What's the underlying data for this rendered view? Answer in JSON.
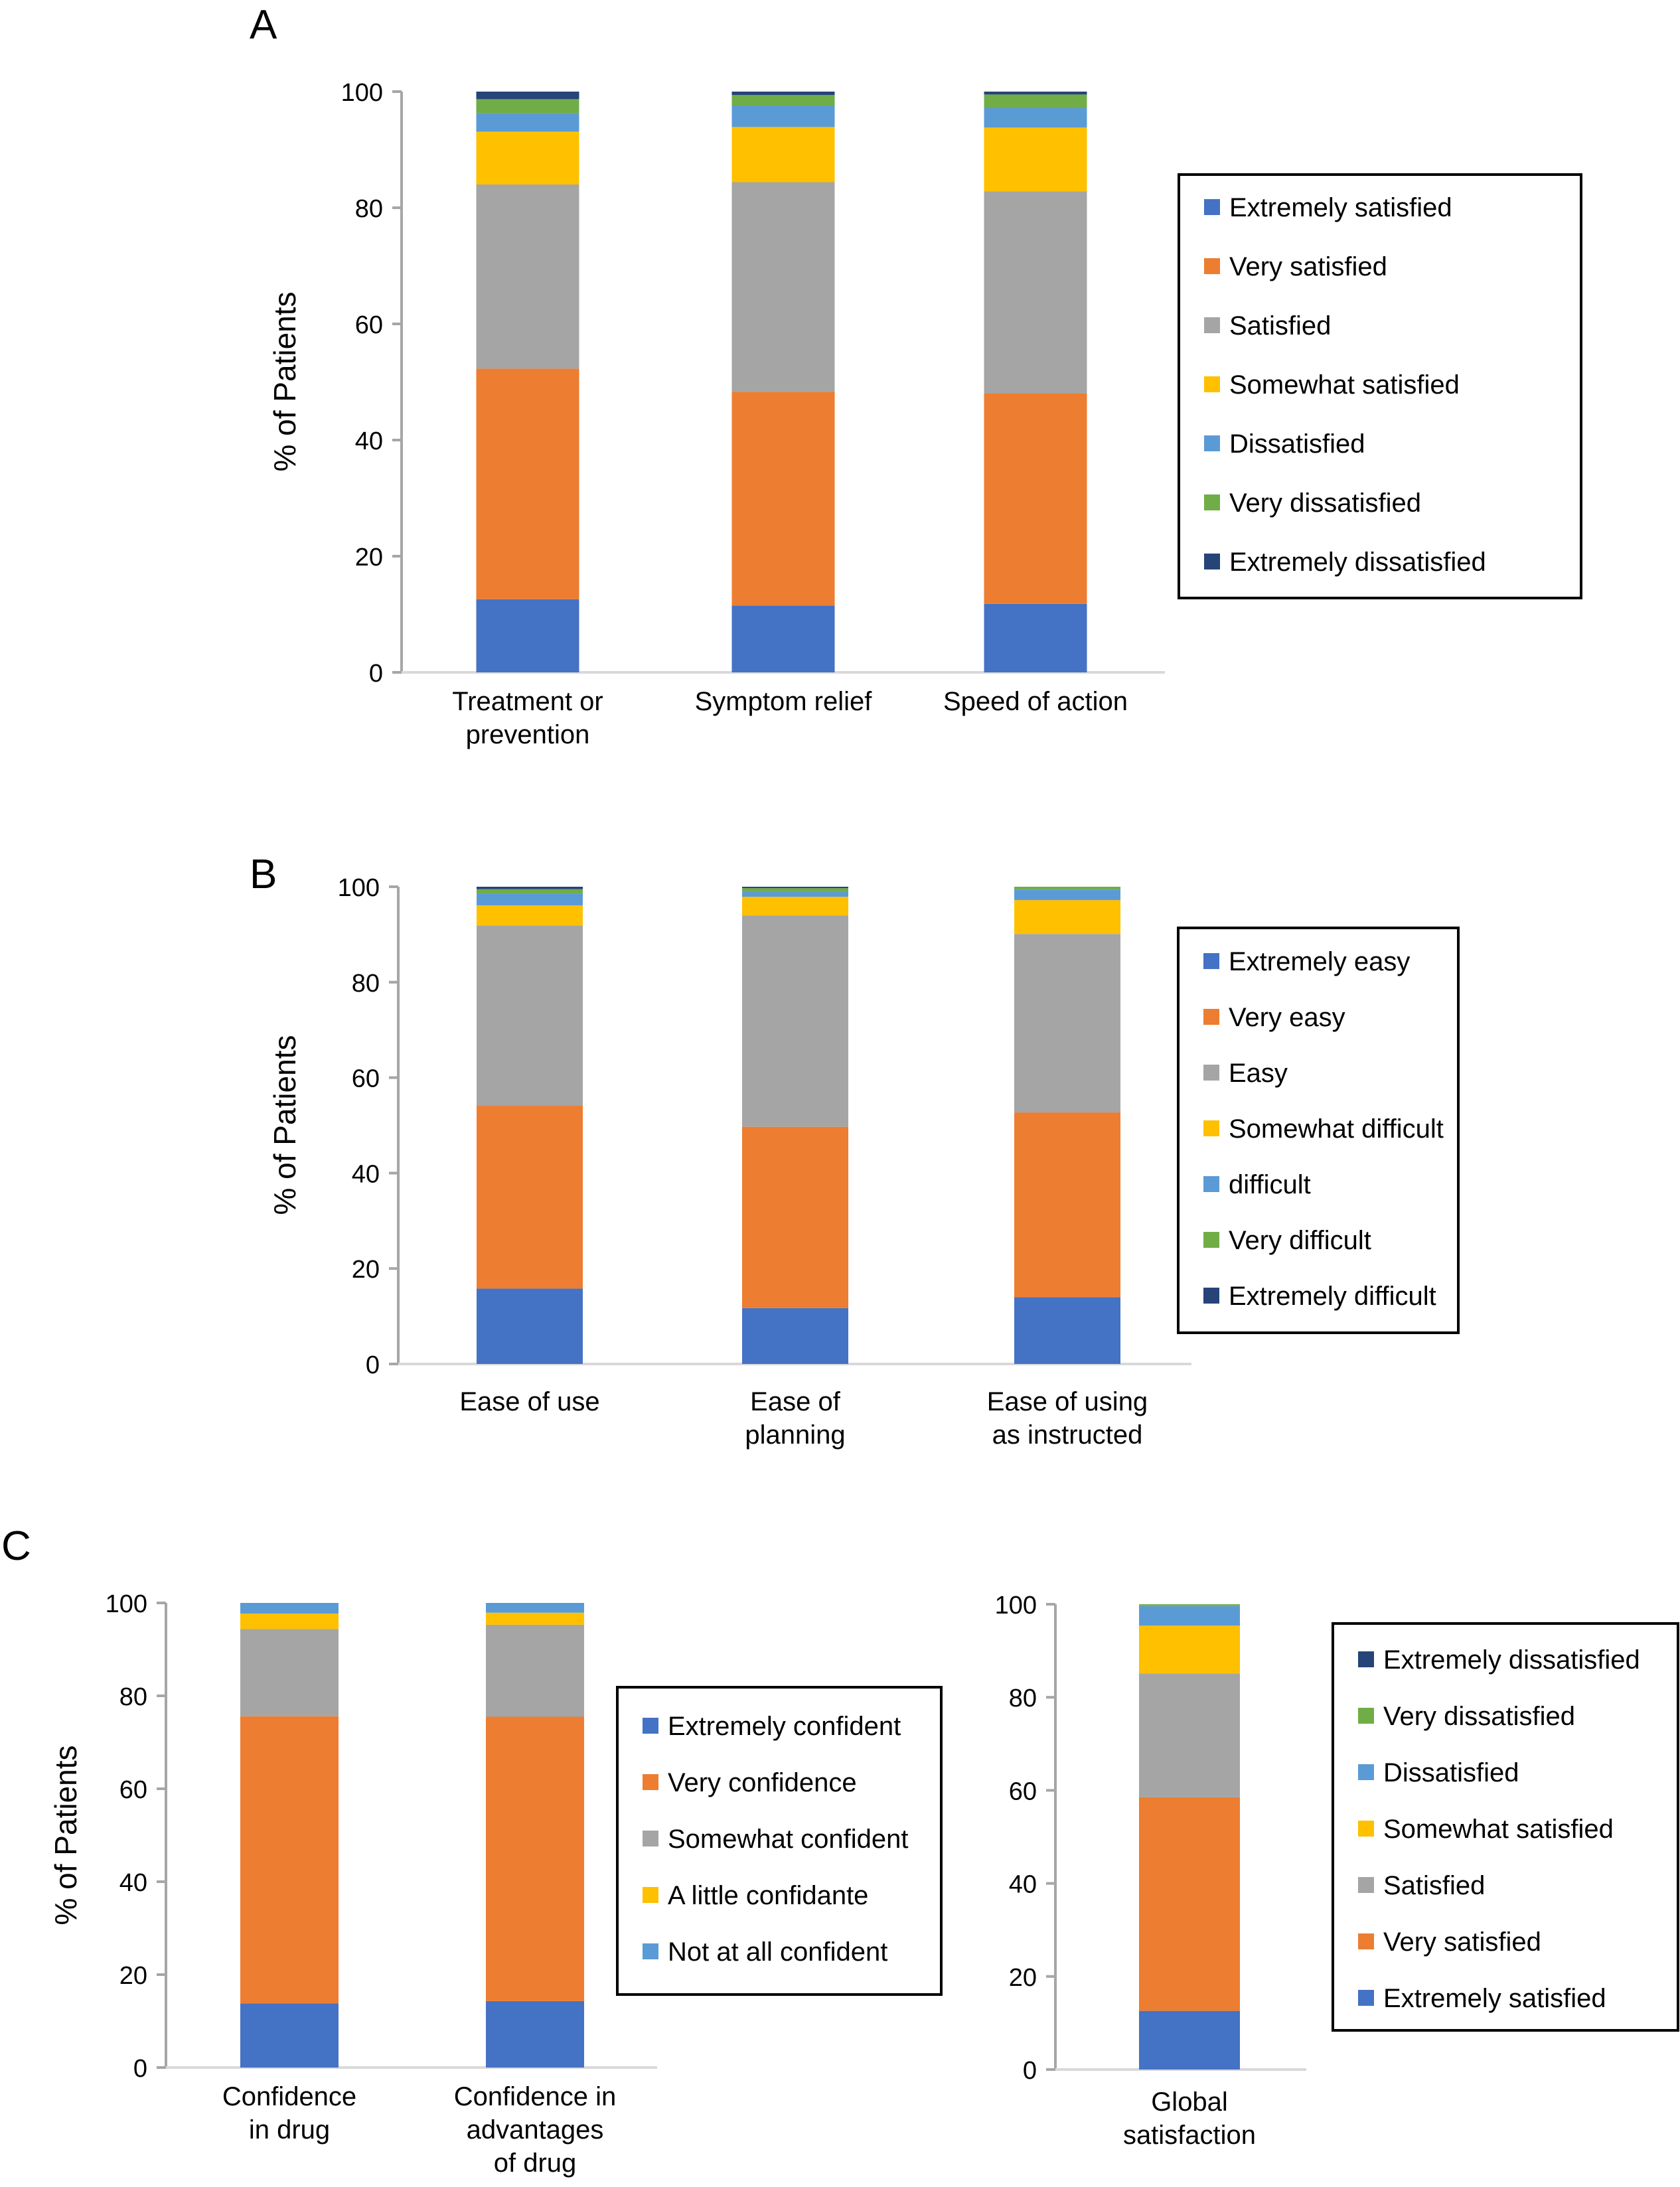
{
  "colors": {
    "dark_blue": "#4472C4",
    "orange": "#ED7D31",
    "gray": "#A5A5A5",
    "yellow": "#FFC000",
    "light_blue": "#5B9BD5",
    "green": "#70AD47",
    "navy": "#264478"
  },
  "chart_data": [
    {
      "panel": "A",
      "type": "bar",
      "stacked": true,
      "ylabel": "% of Patients",
      "ylim": [
        0,
        100
      ],
      "yticks": [
        "0",
        "20",
        "40",
        "60",
        "80",
        "100"
      ],
      "legend_position": "right",
      "categories": [
        [
          "Treatment or",
          "prevention"
        ],
        [
          "Symptom relief"
        ],
        [
          "Speed of action"
        ]
      ],
      "series": [
        {
          "name": "Extremely satisfied",
          "color": "#4472C4",
          "values": [
            12.6,
            11.5,
            11.8
          ]
        },
        {
          "name": "Very satisfied",
          "color": "#ED7D31",
          "values": [
            39.7,
            36.8,
            36.2
          ]
        },
        {
          "name": "Satisfied",
          "color": "#A5A5A5",
          "values": [
            31.7,
            36.1,
            34.8
          ]
        },
        {
          "name": "Somewhat satisfied",
          "color": "#FFC000",
          "values": [
            9.1,
            9.5,
            11.0
          ]
        },
        {
          "name": "Dissatisfied",
          "color": "#5B9BD5",
          "values": [
            3.2,
            3.7,
            3.4
          ]
        },
        {
          "name": "Very dissatisfied",
          "color": "#70AD47",
          "values": [
            2.4,
            1.8,
            2.3
          ]
        },
        {
          "name": "Extremely dissatisfied",
          "color": "#264478",
          "values": [
            1.3,
            0.6,
            0.5
          ]
        }
      ],
      "legend_order": [
        0,
        1,
        2,
        3,
        4,
        5,
        6
      ]
    },
    {
      "panel": "B",
      "type": "bar",
      "stacked": true,
      "ylabel": "% of Patients",
      "ylim": [
        0,
        100
      ],
      "yticks": [
        "0",
        "20",
        "40",
        "60",
        "80",
        "100"
      ],
      "legend_position": "right",
      "categories": [
        [
          "Ease of use"
        ],
        [
          "Ease of",
          "planning"
        ],
        [
          "Ease of using",
          "as instructed"
        ]
      ],
      "series": [
        {
          "name": "Extremely easy",
          "color": "#4472C4",
          "values": [
            15.8,
            11.7,
            14.0
          ]
        },
        {
          "name": "Very easy",
          "color": "#ED7D31",
          "values": [
            38.3,
            38.0,
            38.7
          ]
        },
        {
          "name": "Easy",
          "color": "#A5A5A5",
          "values": [
            37.8,
            44.3,
            37.4
          ]
        },
        {
          "name": "Somewhat difficult",
          "color": "#FFC000",
          "values": [
            4.2,
            3.9,
            7.1
          ]
        },
        {
          "name": "difficult",
          "color": "#5B9BD5",
          "values": [
            2.5,
            1.0,
            2.2
          ]
        },
        {
          "name": "Very difficult",
          "color": "#70AD47",
          "values": [
            0.9,
            0.8,
            0.6
          ]
        },
        {
          "name": "Extremely difficult",
          "color": "#264478",
          "values": [
            0.5,
            0.3,
            0.0
          ]
        }
      ],
      "legend_order": [
        0,
        1,
        2,
        3,
        4,
        5,
        6
      ]
    },
    {
      "panel": "C",
      "type": "bar",
      "stacked": true,
      "ylabel": "% of Patients",
      "ylim": [
        0,
        100
      ],
      "yticks": [
        "0",
        "20",
        "40",
        "60",
        "80",
        "100"
      ],
      "legend_position": "right",
      "categories": [
        [
          "Confidence",
          "in drug"
        ],
        [
          "Confidence in",
          "advantages",
          "of drug"
        ]
      ],
      "series": [
        {
          "name": "Extremely confident",
          "color": "#4472C4",
          "values": [
            13.8,
            14.3
          ]
        },
        {
          "name": "Very confidence",
          "color": "#ED7D31",
          "values": [
            61.8,
            61.2
          ]
        },
        {
          "name": "Somewhat confident",
          "color": "#A5A5A5",
          "values": [
            18.8,
            19.8
          ]
        },
        {
          "name": "A little confidante",
          "color": "#FFC000",
          "values": [
            3.3,
            2.6
          ]
        },
        {
          "name": "Not at all confident",
          "color": "#5B9BD5",
          "values": [
            2.3,
            2.1
          ]
        }
      ],
      "legend_order": [
        0,
        1,
        2,
        3,
        4
      ]
    },
    {
      "panel": "C-global",
      "type": "bar",
      "stacked": true,
      "ylabel": "",
      "ylim": [
        0,
        100
      ],
      "yticks": [
        "0",
        "20",
        "40",
        "60",
        "80",
        "100"
      ],
      "legend_position": "right",
      "categories": [
        [
          "Global",
          "satisfaction"
        ]
      ],
      "series": [
        {
          "name": "Extremely satisfied",
          "color": "#4472C4",
          "values": [
            12.6
          ]
        },
        {
          "name": "Very satisfied",
          "color": "#ED7D31",
          "values": [
            45.9
          ]
        },
        {
          "name": "Satisfied",
          "color": "#A5A5A5",
          "values": [
            26.6
          ]
        },
        {
          "name": "Somewhat satisfied",
          "color": "#FFC000",
          "values": [
            10.3
          ]
        },
        {
          "name": "Dissatisfied",
          "color": "#5B9BD5",
          "values": [
            4.2
          ]
        },
        {
          "name": "Very dissatisfied",
          "color": "#70AD47",
          "values": [
            0.4
          ]
        },
        {
          "name": "Extremely dissatisfied",
          "color": "#264478",
          "values": [
            0.0
          ]
        }
      ],
      "legend_order": [
        6,
        5,
        4,
        3,
        2,
        1,
        0
      ]
    }
  ],
  "panel_labels": [
    "A",
    "B",
    "C"
  ]
}
